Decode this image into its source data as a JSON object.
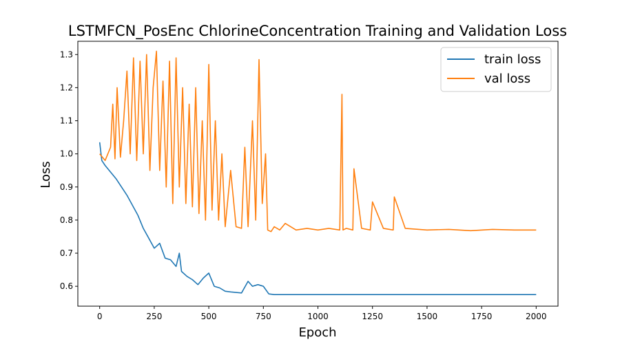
{
  "chart_data": {
    "type": "line",
    "title": "LSTMFCN_PosEnc ChlorineConcentration Training and Validation Loss",
    "xlabel": "Epoch",
    "ylabel": "Loss",
    "xlim": [
      -100,
      2100
    ],
    "ylim": [
      0.54,
      1.34
    ],
    "xticks": [
      0,
      250,
      500,
      750,
      1000,
      1250,
      1500,
      1750,
      2000
    ],
    "yticks": [
      0.6,
      0.7,
      0.8,
      0.9,
      1.0,
      1.1,
      1.2,
      1.3
    ],
    "xtick_labels": [
      "0",
      "250",
      "500",
      "750",
      "1000",
      "1250",
      "1500",
      "1750",
      "2000"
    ],
    "ytick_labels": [
      "0.6",
      "0.7",
      "0.8",
      "0.9",
      "1.0",
      "1.1",
      "1.2",
      "1.3"
    ],
    "grid": false,
    "legend_position": "top-right",
    "series": [
      {
        "name": "train loss",
        "color": "#1f77b4",
        "x": [
          0,
          10,
          25,
          50,
          75,
          100,
          125,
          150,
          175,
          200,
          225,
          250,
          275,
          300,
          325,
          350,
          365,
          375,
          400,
          425,
          450,
          475,
          500,
          525,
          550,
          575,
          600,
          650,
          680,
          700,
          725,
          750,
          775,
          800,
          1000,
          1250,
          1500,
          1750,
          2000
        ],
        "y": [
          1.035,
          0.98,
          0.965,
          0.945,
          0.925,
          0.9,
          0.875,
          0.845,
          0.815,
          0.775,
          0.745,
          0.715,
          0.73,
          0.685,
          0.68,
          0.66,
          0.7,
          0.645,
          0.63,
          0.62,
          0.605,
          0.625,
          0.64,
          0.6,
          0.595,
          0.585,
          0.583,
          0.58,
          0.615,
          0.6,
          0.605,
          0.6,
          0.577,
          0.575,
          0.575,
          0.575,
          0.575,
          0.575,
          0.575
        ]
      },
      {
        "name": "val loss",
        "color": "#ff7f0e",
        "x": [
          0,
          25,
          50,
          60,
          70,
          80,
          95,
          110,
          125,
          140,
          155,
          170,
          185,
          200,
          215,
          230,
          245,
          260,
          275,
          290,
          305,
          320,
          335,
          350,
          365,
          380,
          395,
          410,
          425,
          440,
          455,
          470,
          485,
          500,
          515,
          530,
          545,
          560,
          575,
          600,
          625,
          650,
          665,
          680,
          700,
          715,
          730,
          745,
          760,
          770,
          785,
          800,
          825,
          850,
          900,
          950,
          1000,
          1050,
          1100,
          1110,
          1115,
          1130,
          1160,
          1165,
          1200,
          1240,
          1250,
          1300,
          1345,
          1350,
          1400,
          1500,
          1600,
          1700,
          1800,
          1900,
          2000
        ],
        "y": [
          1.0,
          0.98,
          1.02,
          1.15,
          0.985,
          1.2,
          0.99,
          1.1,
          1.25,
          1.0,
          1.29,
          0.98,
          1.28,
          1.0,
          1.3,
          0.95,
          1.2,
          1.31,
          0.95,
          1.22,
          0.9,
          1.28,
          0.85,
          1.29,
          0.9,
          1.2,
          0.85,
          1.15,
          0.84,
          1.2,
          0.82,
          1.1,
          0.8,
          1.27,
          0.83,
          1.1,
          0.8,
          1.0,
          0.78,
          0.95,
          0.78,
          0.775,
          1.02,
          0.78,
          1.1,
          0.8,
          1.285,
          0.85,
          1.0,
          0.77,
          0.765,
          0.78,
          0.77,
          0.79,
          0.77,
          0.775,
          0.77,
          0.775,
          0.77,
          1.18,
          0.77,
          0.775,
          0.77,
          0.955,
          0.775,
          0.77,
          0.855,
          0.775,
          0.77,
          0.87,
          0.775,
          0.77,
          0.772,
          0.768,
          0.772,
          0.77,
          0.77
        ]
      }
    ]
  }
}
